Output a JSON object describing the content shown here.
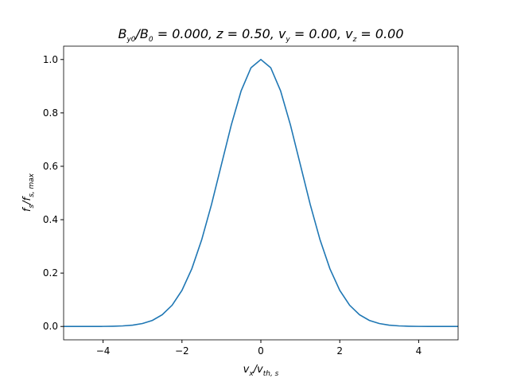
{
  "chart_data": {
    "type": "line",
    "title": [
      "B",
      "y0",
      "/B",
      "0",
      " = 0.000, z = 0.50, v",
      "y",
      " = 0.00, v",
      "z",
      " = 0.00"
    ],
    "xlabel": [
      "v",
      "x",
      "/v",
      "th, s"
    ],
    "ylabel": [
      "f",
      "s",
      "/f",
      "s, max"
    ],
    "x": [
      -5,
      -4.75,
      -4.5,
      -4.25,
      -4,
      -3.75,
      -3.5,
      -3.25,
      -3,
      -2.75,
      -2.5,
      -2.25,
      -2,
      -1.75,
      -1.5,
      -1.25,
      -1,
      -0.75,
      -0.5,
      -0.25,
      0,
      0.25,
      0.5,
      0.75,
      1,
      1.25,
      1.5,
      1.75,
      2,
      2.25,
      2.5,
      2.75,
      3,
      3.25,
      3.5,
      3.75,
      4,
      4.25,
      4.5,
      4.75,
      5
    ],
    "series": [
      {
        "color": "#1f77b4",
        "values": [
          0,
          0,
          0,
          0.0001,
          0.0003,
          0.0009,
          0.0022,
          0.0051,
          0.0111,
          0.0228,
          0.0439,
          0.0796,
          0.1353,
          0.2163,
          0.3247,
          0.4578,
          0.6065,
          0.7548,
          0.8825,
          0.9692,
          1,
          0.9692,
          0.8825,
          0.7548,
          0.6065,
          0.4578,
          0.3247,
          0.2163,
          0.1353,
          0.0796,
          0.0439,
          0.0228,
          0.0111,
          0.0051,
          0.0022,
          0.0009,
          0.0003,
          0.0001,
          0,
          0,
          0
        ]
      }
    ],
    "xlim": [
      -5,
      5
    ],
    "ylim": [
      -0.05,
      1.05
    ],
    "xticks": [
      {
        "value": -4,
        "label": "−4"
      },
      {
        "value": -2,
        "label": "−2"
      },
      0,
      2,
      4
    ],
    "yticks": [
      {
        "value": 0,
        "label": "0.0"
      },
      0.2,
      0.4,
      0.6,
      0.8,
      {
        "value": 1,
        "label": "1.0"
      }
    ]
  }
}
